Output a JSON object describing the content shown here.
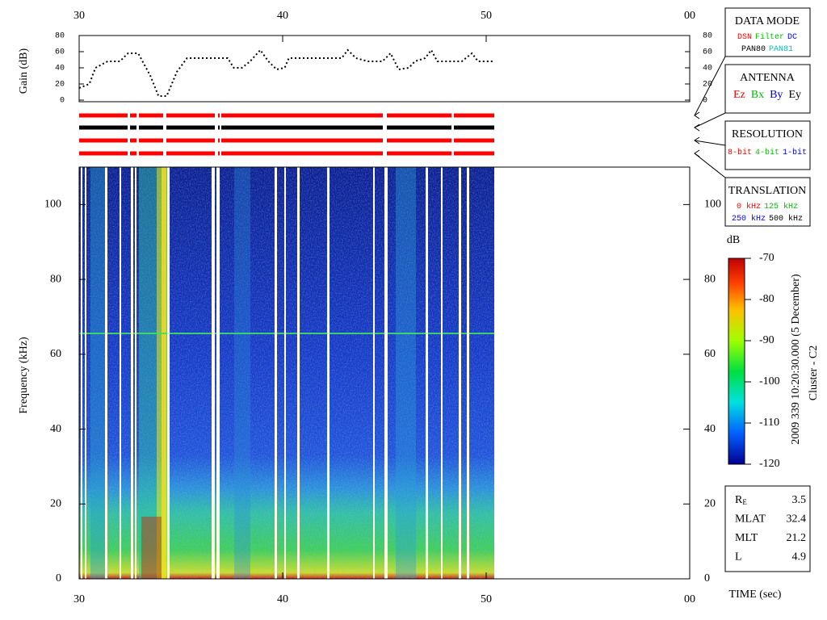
{
  "chart_data": [
    {
      "type": "line",
      "y_label": "Gain (dB)",
      "color": "#000000",
      "x": [
        30,
        30.5,
        30.8,
        31.4,
        32.0,
        32.4,
        32.9,
        33.5,
        33.9,
        34.3,
        34.8,
        35.3,
        36.5,
        37.3,
        37.6,
        38.0,
        38.4,
        38.9,
        39.3,
        39.7,
        40.1,
        40.3,
        41.2,
        42.9,
        43.2,
        43.6,
        44.2,
        44.9,
        45.3,
        45.7,
        46.2,
        46.5,
        47.0,
        47.3,
        47.6,
        48.8,
        49.3,
        49.6,
        50.4
      ],
      "values": [
        15,
        20,
        40,
        48,
        48,
        58,
        58,
        30,
        5,
        5,
        35,
        52,
        52,
        52,
        40,
        40,
        48,
        62,
        48,
        38,
        40,
        52,
        52,
        52,
        62,
        52,
        48,
        48,
        58,
        38,
        40,
        48,
        52,
        62,
        48,
        48,
        58,
        48,
        48
      ],
      "xlim": [
        30,
        60
      ],
      "xticks": [
        30,
        40,
        50,
        {
          "value": 60,
          "label": "00"
        }
      ],
      "ylim": [
        0,
        80
      ],
      "yticks": [
        0,
        20,
        40,
        60,
        80
      ]
    },
    {
      "type": "heatmap",
      "y_label": "Frequency (kHz)",
      "x_label": "TIME (sec)",
      "xlim": [
        30,
        60
      ],
      "xticks": [
        30,
        40,
        50,
        {
          "value": 60,
          "label": "00"
        }
      ],
      "ylim": [
        0,
        110
      ],
      "yticks": [
        0,
        20,
        40,
        60,
        80,
        100
      ],
      "colorbar": {
        "label": "dB",
        "lim": [
          -120,
          -70
        ],
        "ticks": [
          -120,
          -110,
          -100,
          -90,
          -80,
          -70
        ]
      }
    }
  ],
  "panels": [
    {
      "title": "DATA MODE",
      "rows": [
        [
          {
            "text": "DSN",
            "color": "#ff0000"
          },
          {
            "text": "Filter",
            "color": "#00c000"
          },
          {
            "text": "DC",
            "color": "#0000ff"
          }
        ],
        [
          {
            "text": "PAN80",
            "color": "#000000"
          },
          {
            "text": "PAN81",
            "color": "#00c0c0"
          }
        ]
      ]
    },
    {
      "title": "ANTENNA",
      "rows": [
        [
          {
            "text": "Ez",
            "color": "#ff0000"
          },
          {
            "text": "Bx",
            "color": "#00c000"
          },
          {
            "text": "By",
            "color": "#0000ff"
          },
          {
            "text": "Ey",
            "color": "#000000"
          }
        ]
      ]
    },
    {
      "title": "RESOLUTION",
      "rows": [
        [
          {
            "text": "8-bit",
            "color": "#ff0000"
          },
          {
            "text": "4-bit",
            "color": "#00c000"
          },
          {
            "text": "1-bit",
            "color": "#0000ff"
          }
        ]
      ]
    },
    {
      "title": "TRANSLATION",
      "rows": [
        [
          {
            "text": "0 kHz",
            "color": "#ff0000"
          },
          {
            "text": "125 kHz",
            "color": "#00c000"
          }
        ],
        [
          {
            "text": "250 kHz",
            "color": "#0000ff"
          },
          {
            "text": "500 kHz",
            "color": "#000000"
          }
        ]
      ]
    }
  ],
  "annotation": "2009 339 10:20:30.000 (5 December)",
  "spacecraft": "Cluster - C2",
  "ephemeris": [
    {
      "name": "R",
      "sub": "E",
      "value": 3.5
    },
    {
      "name": "MLAT",
      "value": 32.4
    },
    {
      "name": "MLT",
      "value": 21.2
    },
    {
      "name": "L",
      "value": 4.9
    }
  ]
}
